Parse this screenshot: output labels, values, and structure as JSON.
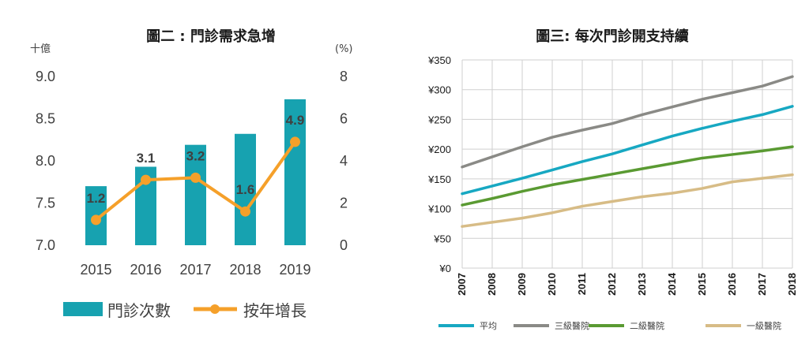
{
  "chart_data": [
    {
      "type": "bar+line",
      "title": "圖二 : 門診需求急增",
      "y1_unit": "十億",
      "y2_unit": "(%)",
      "categories": [
        "2015",
        "2016",
        "2017",
        "2018",
        "2019"
      ],
      "y1lim": [
        7.0,
        9.0
      ],
      "y1_ticks": [
        "7.0",
        "7.5",
        "8.0",
        "8.5",
        "9.0"
      ],
      "y2lim": [
        0,
        8
      ],
      "y2_ticks": [
        "0",
        "2",
        "4",
        "6",
        "8"
      ],
      "bars": {
        "name": "門診次數",
        "color": "#17a2b0",
        "values": [
          7.7,
          7.93,
          8.19,
          8.32,
          8.73
        ]
      },
      "line": {
        "name": "按年增長",
        "color": "#f5a02a",
        "values": [
          1.2,
          3.1,
          3.2,
          1.6,
          4.9
        ],
        "labels": [
          "1.2",
          "3.1",
          "3.2",
          "1.6",
          "4.9"
        ]
      },
      "legend_position": "bottom"
    },
    {
      "type": "line",
      "title": "圖三: 每次門診開支持續",
      "x": [
        "2007",
        "2008",
        "2009",
        "2010",
        "2011",
        "2012",
        "2013",
        "2014",
        "2015",
        "2016",
        "2017",
        "2018"
      ],
      "ylim": [
        0,
        350
      ],
      "y_ticks": [
        "¥0",
        "¥50",
        "¥100",
        "¥150",
        "¥200",
        "¥250",
        "¥300",
        "¥350"
      ],
      "grid": true,
      "series": [
        {
          "name": "平均",
          "color": "#17a8c2",
          "values": [
            125,
            138,
            151,
            165,
            179,
            192,
            207,
            222,
            235,
            247,
            258,
            272
          ]
        },
        {
          "name": "三級醫院",
          "color": "#8a8a86",
          "values": [
            170,
            187,
            204,
            220,
            232,
            243,
            258,
            271,
            284,
            295,
            306,
            322
          ]
        },
        {
          "name": "二級醫院",
          "color": "#5a9a32",
          "values": [
            106,
            117,
            129,
            140,
            149,
            158,
            167,
            176,
            185,
            191,
            197,
            204
          ]
        },
        {
          "name": "一級醫院",
          "color": "#d7bc86",
          "values": [
            70,
            77,
            84,
            93,
            104,
            112,
            120,
            126,
            134,
            145,
            151,
            157
          ]
        }
      ],
      "legend_position": "bottom"
    }
  ]
}
